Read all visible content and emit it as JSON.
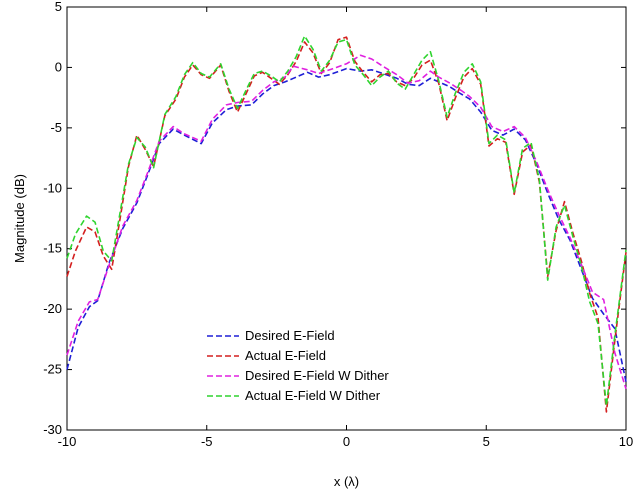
{
  "chart_data": {
    "type": "line",
    "xlabel": "x (λ)",
    "ylabel": "Magnitude (dB)",
    "xlim": [
      -10,
      10
    ],
    "ylim": [
      -30,
      5
    ],
    "xticks": [
      -10,
      -5,
      0,
      5,
      10
    ],
    "yticks": [
      5,
      0,
      -5,
      -10,
      -15,
      -20,
      -25,
      -30
    ],
    "grid": false,
    "legend_position": "lower-center",
    "series": [
      {
        "name": "Desired E-Field",
        "color": "#1f1fd6",
        "x": [
          -10,
          -9.6,
          -9.2,
          -8.9,
          -8.5,
          -8,
          -7.5,
          -7.1,
          -6.7,
          -6.2,
          -5.8,
          -5.2,
          -4.8,
          -4.3,
          -3.9,
          -3.4,
          -3,
          -2.6,
          -2.2,
          -1.9,
          -1.4,
          -1,
          -0.6,
          0,
          0.5,
          0.9,
          1.3,
          1.8,
          2.2,
          2.6,
          3,
          3.3,
          3.7,
          4.1,
          4.4,
          4.8,
          5.2,
          5.6,
          6,
          6.4,
          6.8,
          7.2,
          7.6,
          8,
          8.4,
          8.8,
          9.2,
          9.6,
          10
        ],
        "y": [
          -25,
          -21.5,
          -19.8,
          -19.3,
          -16.2,
          -13.3,
          -11.2,
          -8.8,
          -6.3,
          -5.1,
          -5.6,
          -6.3,
          -4.6,
          -3.5,
          -3.2,
          -3.1,
          -2.2,
          -1.5,
          -1.2,
          -0.9,
          -0.4,
          -0.8,
          -0.6,
          -0.1,
          -0.3,
          -0.2,
          -0.5,
          -0.9,
          -1.4,
          -1.5,
          -0.9,
          -1.2,
          -1.6,
          -2.2,
          -2.6,
          -3.7,
          -5.2,
          -5.6,
          -5.1,
          -6,
          -8,
          -10.4,
          -12.6,
          -14.3,
          -16.7,
          -19.1,
          -20.4,
          -21.6,
          -26
        ]
      },
      {
        "name": "Actual E-Field",
        "color": "#d41f1f",
        "x": [
          -10,
          -9.7,
          -9.3,
          -9,
          -8.7,
          -8.4,
          -8.1,
          -7.8,
          -7.5,
          -7.2,
          -6.9,
          -6.5,
          -6.1,
          -5.8,
          -5.5,
          -5.2,
          -4.9,
          -4.5,
          -4.2,
          -3.9,
          -3.6,
          -3.3,
          -3,
          -2.7,
          -2.4,
          -2.1,
          -1.8,
          -1.5,
          -1.2,
          -0.9,
          -0.6,
          -0.3,
          0,
          0.3,
          0.6,
          0.9,
          1.2,
          1.5,
          1.8,
          2.1,
          2.4,
          2.7,
          3,
          3.3,
          3.6,
          3.9,
          4.2,
          4.5,
          4.8,
          5.1,
          5.4,
          5.7,
          6,
          6.3,
          6.6,
          6.9,
          7.2,
          7.5,
          7.8,
          8.1,
          8.4,
          8.7,
          9,
          9.3,
          9.6,
          10
        ],
        "y": [
          -17.3,
          -15.2,
          -13.2,
          -13.6,
          -15.6,
          -16.7,
          -12.5,
          -8.2,
          -5.6,
          -6.8,
          -8.2,
          -4,
          -2.6,
          -0.8,
          0.2,
          -0.6,
          -0.9,
          0.2,
          -2,
          -3.7,
          -2.2,
          -0.7,
          -0.4,
          -0.9,
          -1.4,
          -0.6,
          0.5,
          2.1,
          1.2,
          -0.5,
          0.4,
          2.3,
          2.5,
          0.5,
          -0.4,
          -1.2,
          -0.6,
          -0.5,
          -1.2,
          -1.5,
          -0.9,
          0.2,
          0.6,
          -1.3,
          -4.4,
          -2.5,
          -0.8,
          -0.1,
          -1.4,
          -6.5,
          -5.9,
          -6.2,
          -10.5,
          -7,
          -6.4,
          -9.5,
          -17.3,
          -13.5,
          -11.1,
          -13.7,
          -16,
          -18.7,
          -20.7,
          -28.5,
          -22.6,
          -15.3
        ]
      },
      {
        "name": "Desired E-Field W Dither",
        "color": "#e020e0",
        "x": [
          -10,
          -9.6,
          -9.2,
          -8.9,
          -8.5,
          -8,
          -7.5,
          -7.1,
          -6.7,
          -6.2,
          -5.8,
          -5.2,
          -4.8,
          -4.3,
          -3.9,
          -3.4,
          -3,
          -2.6,
          -2.2,
          -1.9,
          -1.4,
          -1,
          -0.6,
          0,
          0.5,
          0.9,
          1.3,
          1.8,
          2.2,
          2.6,
          3,
          3.3,
          3.7,
          4.1,
          4.4,
          4.8,
          5.2,
          5.6,
          6,
          6.4,
          6.8,
          7.2,
          7.6,
          8,
          8.4,
          8.8,
          9.2,
          9.6,
          10
        ],
        "y": [
          -23.8,
          -21,
          -19.4,
          -19.2,
          -16.4,
          -13.1,
          -11,
          -8.6,
          -6.1,
          -4.9,
          -5.5,
          -6.1,
          -4.3,
          -3.1,
          -2.9,
          -2.8,
          -1.9,
          -1.2,
          -0.8,
          0.1,
          -0.2,
          -0.5,
          -0.2,
          0.3,
          1,
          0.7,
          0.1,
          -0.6,
          -1.3,
          -1.1,
          -0.3,
          -0.8,
          -1.3,
          -1.9,
          -2.4,
          -3.3,
          -4.9,
          -5.3,
          -4.9,
          -5.8,
          -7.8,
          -10.1,
          -12.2,
          -14.1,
          -16.3,
          -18.6,
          -19.2,
          -23.6,
          -26.6
        ]
      },
      {
        "name": "Actual E-Field W Dither",
        "color": "#2fd42f",
        "x": [
          -10,
          -9.7,
          -9.3,
          -9,
          -8.7,
          -8.4,
          -8.1,
          -7.8,
          -7.5,
          -7.2,
          -6.9,
          -6.5,
          -6.1,
          -5.8,
          -5.5,
          -5.2,
          -4.9,
          -4.5,
          -4.2,
          -3.9,
          -3.6,
          -3.3,
          -3,
          -2.7,
          -2.4,
          -2.1,
          -1.8,
          -1.5,
          -1.2,
          -0.9,
          -0.6,
          -0.3,
          0,
          0.3,
          0.6,
          0.9,
          1.2,
          1.5,
          1.8,
          2.1,
          2.4,
          2.7,
          3,
          3.3,
          3.6,
          3.9,
          4.2,
          4.5,
          4.8,
          5.1,
          5.4,
          5.7,
          6,
          6.3,
          6.6,
          6.9,
          7.2,
          7.5,
          7.8,
          8.1,
          8.4,
          8.7,
          9,
          9.3,
          9.6,
          10
        ],
        "y": [
          -15.8,
          -13.8,
          -12.3,
          -12.8,
          -15.2,
          -16,
          -12,
          -8,
          -5.8,
          -6.6,
          -8.3,
          -3.9,
          -2.4,
          -0.6,
          0.4,
          -0.5,
          -0.8,
          0.3,
          -1.8,
          -3.4,
          -1.9,
          -0.5,
          -0.3,
          -0.7,
          -1.2,
          -0.3,
          0.9,
          2.6,
          1.5,
          -0.3,
          0.6,
          2.1,
          2.3,
          0.2,
          -0.6,
          -1.5,
          -0.8,
          -0.3,
          -1.3,
          -1.8,
          -0.6,
          0.6,
          1.3,
          -1.1,
          -4.1,
          -2.1,
          -0.4,
          0.3,
          -1.2,
          -6.3,
          -5.6,
          -6,
          -10.4,
          -6.7,
          -6.2,
          -9.3,
          -17.6,
          -13.2,
          -11.4,
          -14,
          -16.4,
          -19.4,
          -21.2,
          -28,
          -22.2,
          -15.1
        ]
      }
    ]
  }
}
